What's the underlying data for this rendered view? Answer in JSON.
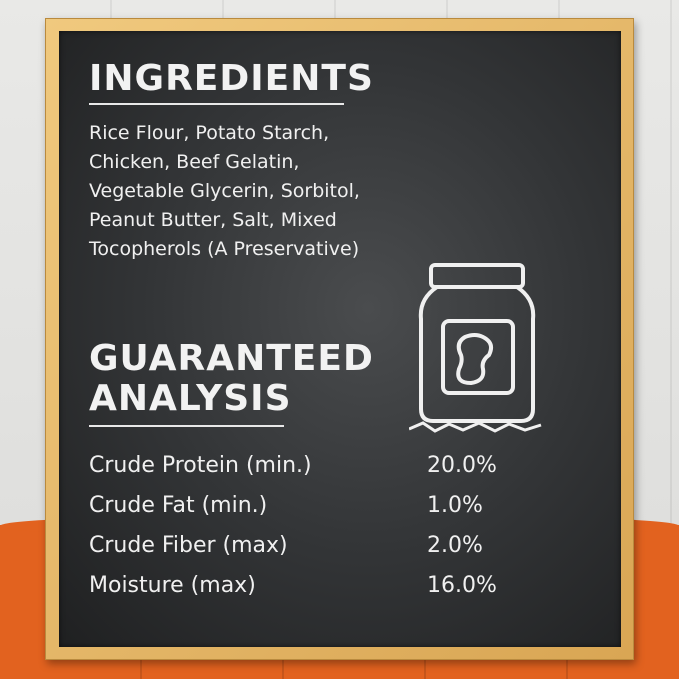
{
  "ingredients": {
    "heading": "INGREDIENTS",
    "text": "Rice Flour, Potato Starch, Chicken, Beef Gelatin, Vegetable Glycerin, Sorbitol, Peanut Butter, Salt, Mixed Tocopherols (A Preservative)"
  },
  "analysis": {
    "heading_line1": "GUARANTEED",
    "heading_line2": "ANALYSIS",
    "rows": [
      {
        "label": "Crude Protein (min.)",
        "value": "20.0%"
      },
      {
        "label": "Crude Fat (min.)",
        "value": "1.0%"
      },
      {
        "label": "Crude Fiber (max)",
        "value": "2.0%"
      },
      {
        "label": "Moisture (max)",
        "value": "16.0%"
      }
    ]
  },
  "icons": {
    "jar": "peanut-butter-jar-icon"
  },
  "colors": {
    "orange": "#e2621f",
    "frame": "#e3b565",
    "board": "#333537",
    "chalk": "#f0f0f0"
  }
}
